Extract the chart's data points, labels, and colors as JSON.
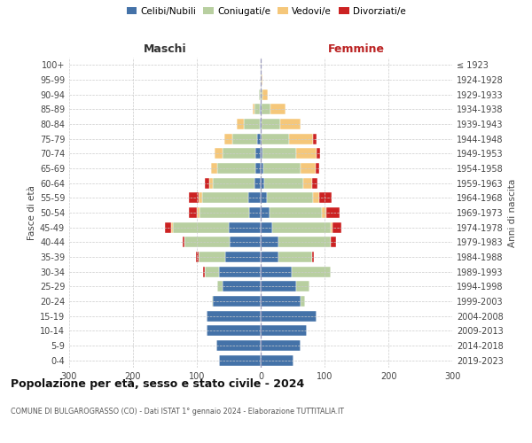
{
  "age_groups": [
    "0-4",
    "5-9",
    "10-14",
    "15-19",
    "20-24",
    "25-29",
    "30-34",
    "35-39",
    "40-44",
    "45-49",
    "50-54",
    "55-59",
    "60-64",
    "65-69",
    "70-74",
    "75-79",
    "80-84",
    "85-89",
    "90-94",
    "95-99",
    "100+"
  ],
  "birth_years": [
    "2019-2023",
    "2014-2018",
    "2009-2013",
    "2004-2008",
    "1999-2003",
    "1994-1998",
    "1989-1993",
    "1984-1988",
    "1979-1983",
    "1974-1978",
    "1969-1973",
    "1964-1968",
    "1959-1963",
    "1954-1958",
    "1949-1953",
    "1944-1948",
    "1939-1943",
    "1934-1938",
    "1929-1933",
    "1924-1928",
    "≤ 1923"
  ],
  "male_celibi": [
    65,
    70,
    85,
    85,
    75,
    60,
    65,
    55,
    48,
    50,
    18,
    20,
    10,
    8,
    8,
    5,
    2,
    2,
    0,
    0,
    0
  ],
  "male_coniugati": [
    0,
    0,
    0,
    0,
    2,
    8,
    22,
    42,
    72,
    88,
    78,
    72,
    65,
    60,
    52,
    40,
    25,
    8,
    3,
    0,
    0
  ],
  "male_vedovi": [
    0,
    0,
    0,
    0,
    0,
    0,
    0,
    0,
    0,
    2,
    4,
    5,
    5,
    10,
    12,
    12,
    10,
    3,
    0,
    0,
    0
  ],
  "male_divorziati": [
    0,
    0,
    0,
    0,
    0,
    0,
    3,
    5,
    2,
    10,
    12,
    15,
    8,
    0,
    0,
    0,
    0,
    0,
    0,
    0,
    0
  ],
  "female_nubili": [
    52,
    62,
    72,
    88,
    62,
    55,
    48,
    28,
    28,
    18,
    14,
    10,
    5,
    4,
    3,
    2,
    2,
    1,
    0,
    0,
    0
  ],
  "female_coniugate": [
    0,
    0,
    0,
    0,
    7,
    22,
    62,
    52,
    82,
    92,
    82,
    72,
    62,
    58,
    52,
    42,
    28,
    14,
    3,
    1,
    0
  ],
  "female_vedove": [
    0,
    0,
    0,
    0,
    0,
    0,
    0,
    0,
    0,
    2,
    7,
    9,
    14,
    24,
    33,
    38,
    33,
    24,
    8,
    2,
    0
  ],
  "female_divorziate": [
    0,
    0,
    0,
    0,
    0,
    0,
    0,
    4,
    8,
    14,
    20,
    20,
    8,
    5,
    5,
    5,
    0,
    0,
    0,
    0,
    0
  ],
  "color_celibi": "#4472a8",
  "color_coniugati": "#b8cfa0",
  "color_vedovi": "#f5c77a",
  "color_divorziati": "#cc2222",
  "title": "Popolazione per età, sesso e stato civile - 2024",
  "subtitle": "COMUNE DI BULGAROGRASSO (CO) - Dati ISTAT 1° gennaio 2024 - Elaborazione TUTTITALIA.IT",
  "header_left": "Maschi",
  "header_right": "Femmine",
  "ylabel_left": "Fasce di età",
  "ylabel_right": "Anni di nascita",
  "legend_labels": [
    "Celibi/Nubili",
    "Coniugati/e",
    "Vedovi/e",
    "Divorziati/e"
  ],
  "xlim": 300,
  "bg_color": "#ffffff",
  "grid_color": "#cccccc"
}
